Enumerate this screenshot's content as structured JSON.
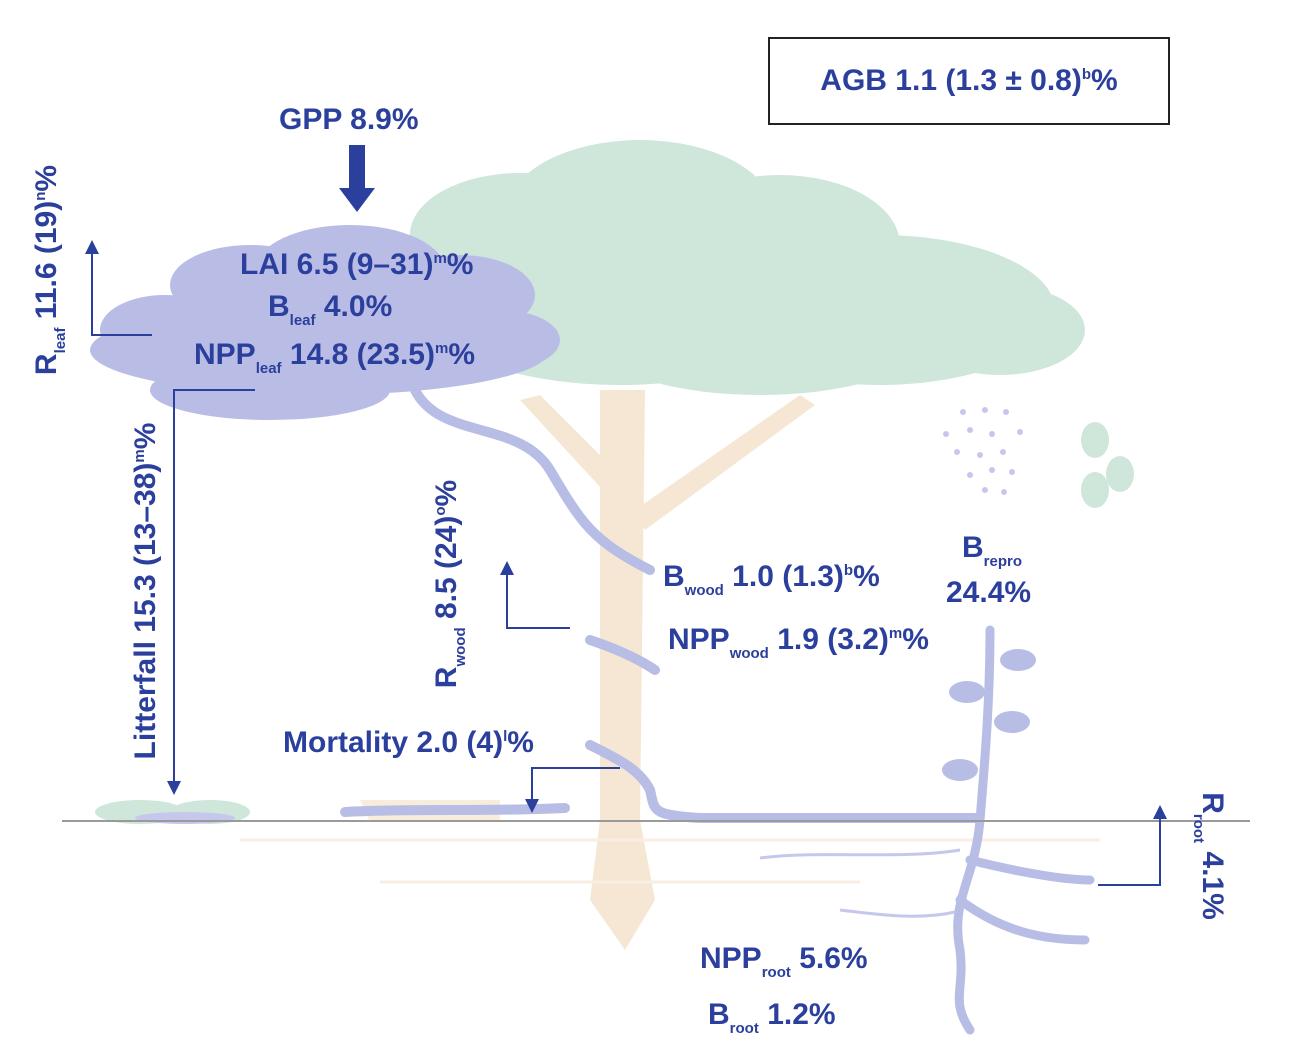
{
  "agb": {
    "base": "AGB",
    "value": "1.1 (1.3 ± 0.8)",
    "sup": "b",
    "unit": "%"
  },
  "gpp": {
    "text": "GPP 8.9%"
  },
  "lai": {
    "base": "LAI",
    "value": "6.5 (9–31)",
    "sup": "m",
    "unit": "%"
  },
  "b_leaf": {
    "base": "B",
    "sub": "leaf",
    "value": "4.0%"
  },
  "npp_leaf": {
    "base": "NPP",
    "sub": "leaf",
    "value": "14.8 (23.5)",
    "sup": "m",
    "unit": "%"
  },
  "r_leaf": {
    "base": "R",
    "sub": "leaf",
    "value": "11.6 (19)",
    "sup": "n",
    "unit": "%"
  },
  "litterfall": {
    "base": "Litterfall",
    "value": "15.3 (13–38)",
    "sup": "m",
    "unit": "%"
  },
  "r_wood": {
    "base": "R",
    "sub": "wood",
    "value": "8.5 (24)",
    "sup": "o",
    "unit": "%"
  },
  "b_wood": {
    "base": "B",
    "sub": "wood",
    "value": "1.0 (1.3)",
    "sup": "b",
    "unit": "%"
  },
  "npp_wood": {
    "base": "NPP",
    "sub": "wood",
    "value": "1.9 (3.2)",
    "sup": "m",
    "unit": "%"
  },
  "mortality": {
    "base": "Mortality",
    "value": "2.0 (4)",
    "sup": "l",
    "unit": "%"
  },
  "b_repro": {
    "base": "B",
    "sub": "repro",
    "value": "24.4%"
  },
  "r_root": {
    "base": "R",
    "sub": "root",
    "value": "4.1%"
  },
  "npp_root": {
    "base": "NPP",
    "sub": "root",
    "value": "5.6%"
  },
  "b_root": {
    "base": "B",
    "sub": "root",
    "value": "1.2%"
  },
  "colors": {
    "label": "#2b3f9c",
    "canopy": "#cfe6da",
    "leaf_cloud": "#b9bde6",
    "trunk": "#f6e7d4",
    "vine": "#b8bde6"
  }
}
